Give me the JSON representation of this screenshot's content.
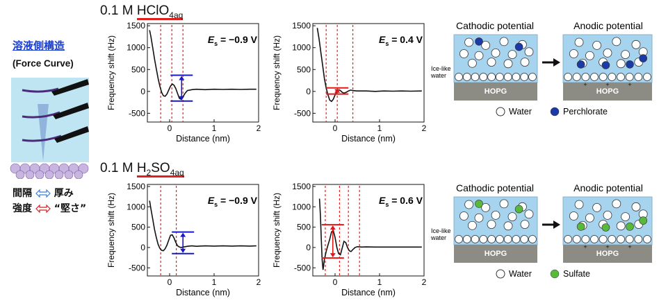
{
  "left_panel": {
    "title": "溶液側構造",
    "subtitle": "(Force Curve)",
    "legend": [
      {
        "term": "間隔",
        "arrow_color": "#3b7fd8",
        "meaning": "厚み"
      },
      {
        "term": "強度",
        "arrow_color": "#d02020",
        "meaning": "“堅さ”"
      }
    ]
  },
  "sections": [
    {
      "prefix": "0.1 M ",
      "formula_main": "HClO",
      "formula_sub1": "4",
      "formula_sub2": "aq"
    },
    {
      "prefix": "0.1 M ",
      "formula_main": "H",
      "formula_sub1": "2",
      "formula_mid": "SO",
      "formula_sub3": "4",
      "formula_sub2": "aq"
    }
  ],
  "chart_data": [
    {
      "type": "line",
      "panel": "HClO4 cathodic",
      "annotation_label": "E",
      "annotation_sub": "s",
      "annotation_value": " = −0.9 V",
      "xlabel": "Distance (nm)",
      "ylabel": "Frequency shift (Hz)",
      "xlim": [
        -0.5,
        2
      ],
      "ylim": [
        -700,
        1550
      ],
      "xticks": [
        "0",
        "1",
        "2"
      ],
      "yticks": [
        "1500",
        "1000",
        "500",
        "0",
        "-500"
      ],
      "x": [
        -0.45,
        -0.42,
        -0.38,
        -0.34,
        -0.3,
        -0.26,
        -0.22,
        -0.18,
        -0.14,
        -0.1,
        -0.06,
        -0.02,
        0.02,
        0.06,
        0.1,
        0.14,
        0.18,
        0.22,
        0.26,
        0.3,
        0.35,
        0.4,
        0.5,
        0.6,
        0.8,
        1.0,
        1.2,
        1.4,
        1.6,
        1.8,
        1.95
      ],
      "y": [
        1400,
        1250,
        1000,
        750,
        520,
        300,
        120,
        -20,
        -100,
        -110,
        -60,
        30,
        120,
        170,
        140,
        60,
        -50,
        -160,
        -180,
        -120,
        -40,
        20,
        40,
        50,
        40,
        50,
        45,
        50,
        45,
        50,
        50
      ],
      "dashed_x": [
        -0.2,
        0.05,
        0.3
      ],
      "arrow_color": "#1818c8",
      "arrow_range": [
        -220,
        370
      ],
      "arrow_x": 0.27
    },
    {
      "type": "line",
      "panel": "HClO4 anodic",
      "annotation_label": "E",
      "annotation_sub": "s",
      "annotation_value": " = 0.4 V",
      "xlabel": "Distance (nm)",
      "ylabel": "Frequency shift (Hz)",
      "xlim": [
        -0.5,
        2
      ],
      "ylim": [
        -700,
        1550
      ],
      "xticks": [
        "0",
        "1",
        "2"
      ],
      "yticks": [
        "1500",
        "1000",
        "500",
        "0",
        "-500"
      ],
      "x": [
        -0.4,
        -0.36,
        -0.32,
        -0.28,
        -0.24,
        -0.2,
        -0.16,
        -0.12,
        -0.08,
        -0.04,
        0.0,
        0.04,
        0.08,
        0.12,
        0.16,
        0.2,
        0.25,
        0.3,
        0.35,
        0.4,
        0.5,
        0.7,
        0.9,
        1.1,
        1.3,
        1.5,
        1.7,
        1.95
      ],
      "y": [
        1450,
        1200,
        900,
        600,
        300,
        80,
        -80,
        -200,
        -230,
        -180,
        -80,
        0,
        40,
        20,
        -20,
        -40,
        -20,
        10,
        30,
        20,
        10,
        10,
        0,
        10,
        5,
        10,
        5,
        10
      ],
      "dashed_x": [
        -0.2,
        0.05,
        0.4
      ],
      "arrow_color": "#e01818",
      "arrow_range": [
        -60,
        80
      ],
      "arrow_x": 0.05
    },
    {
      "type": "line",
      "panel": "H2SO4 cathodic",
      "annotation_label": "E",
      "annotation_sub": "s",
      "annotation_value": " = −0.9 V",
      "xlabel": "Distance (nm)",
      "ylabel": "Frequency shift (Hz)",
      "xlim": [
        -0.5,
        2
      ],
      "ylim": [
        -700,
        1550
      ],
      "xticks": [
        "0",
        "1",
        "2"
      ],
      "yticks": [
        "1500",
        "1000",
        "500",
        "0",
        "-500"
      ],
      "x": [
        -0.45,
        -0.42,
        -0.38,
        -0.34,
        -0.3,
        -0.26,
        -0.22,
        -0.18,
        -0.14,
        -0.1,
        -0.06,
        -0.02,
        0.02,
        0.06,
        0.1,
        0.14,
        0.18,
        0.22,
        0.26,
        0.3,
        0.35,
        0.4,
        0.5,
        0.6,
        0.8,
        1.0,
        1.2,
        1.4,
        1.6,
        1.8,
        1.95
      ],
      "y": [
        1150,
        950,
        700,
        450,
        250,
        80,
        -20,
        -70,
        -80,
        -30,
        60,
        180,
        300,
        310,
        230,
        120,
        40,
        10,
        0,
        10,
        20,
        30,
        40,
        30,
        40,
        35,
        40,
        35,
        40,
        35,
        40
      ],
      "dashed_x": [
        -0.2,
        0.15
      ],
      "arrow_color": "#1818c8",
      "arrow_range": [
        -150,
        380
      ],
      "arrow_x": 0.3
    },
    {
      "type": "line",
      "panel": "H2SO4 anodic",
      "annotation_label": "E",
      "annotation_sub": "s",
      "annotation_value": " = 0.6 V",
      "xlabel": "Distance (nm)",
      "ylabel": "Frequency shift (Hz)",
      "xlim": [
        -0.5,
        2
      ],
      "ylim": [
        -700,
        1550
      ],
      "xticks": [
        "0",
        "1",
        "2"
      ],
      "yticks": [
        "1500",
        "1000",
        "500",
        "0",
        "-500"
      ],
      "x": [
        -0.35,
        -0.33,
        -0.31,
        -0.29,
        -0.27,
        -0.24,
        -0.2,
        -0.16,
        -0.12,
        -0.08,
        -0.04,
        0.0,
        0.04,
        0.08,
        0.12,
        0.16,
        0.2,
        0.24,
        0.28,
        0.32,
        0.36,
        0.4,
        0.45,
        0.5,
        0.6,
        0.7,
        0.9,
        1.1,
        1.3,
        1.5,
        1.7,
        1.95
      ],
      "y": [
        1200,
        800,
        200,
        -300,
        -550,
        -300,
        -100,
        60,
        200,
        380,
        420,
        250,
        0,
        -150,
        -180,
        -20,
        150,
        120,
        0,
        -80,
        -100,
        -50,
        0,
        20,
        10,
        15,
        10,
        10,
        10,
        10,
        10,
        10
      ],
      "dashed_x": [
        -0.22,
        0.1,
        0.3,
        0.55
      ],
      "arrow_color": "#e01818",
      "arrow_range": [
        -260,
        560
      ],
      "arrow_x": -0.05
    }
  ],
  "schematics": [
    {
      "cathodic_title": "Cathodic potential",
      "anodic_title": "Anodic potential",
      "ice_label": "Ice-like\nwater",
      "substrate": "HOPG",
      "legend_water": "Water",
      "legend_ion": "Perchlorate",
      "ion_color": "#1b3aa6"
    },
    {
      "cathodic_title": "Cathodic potential",
      "anodic_title": "Anodic potential",
      "ice_label": "Ice-like\nwater",
      "substrate": "HOPG",
      "legend_water": "Water",
      "legend_ion": "Sulfate",
      "ion_color": "#58b93b"
    }
  ]
}
